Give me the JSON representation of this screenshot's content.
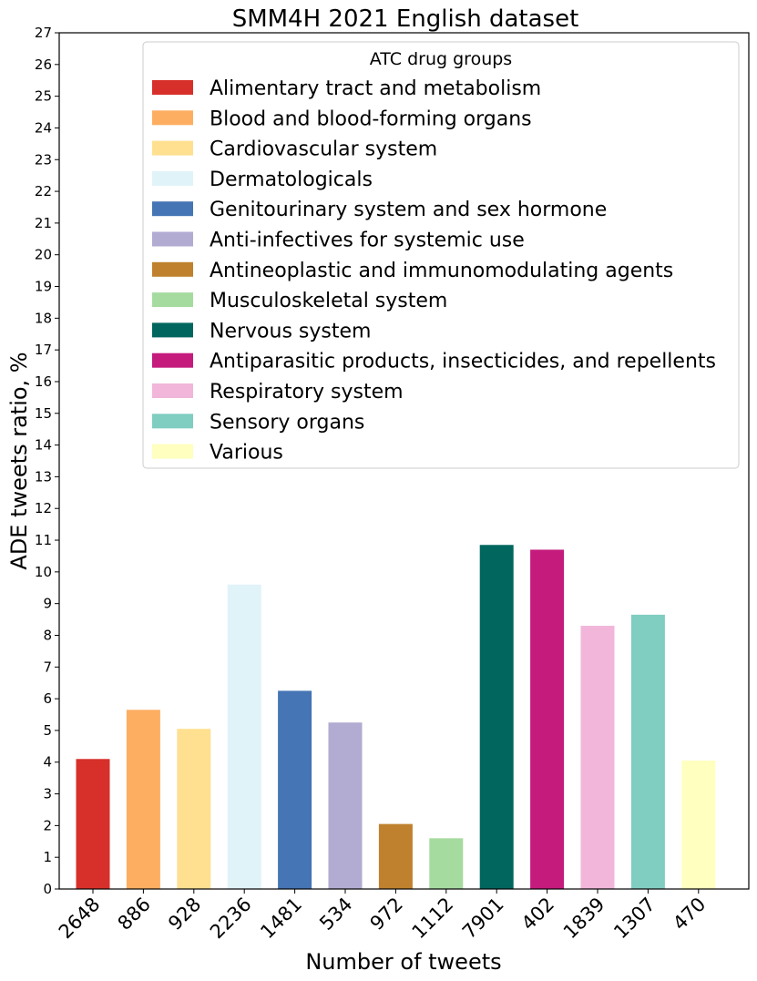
{
  "chart_data": {
    "type": "bar",
    "title": "SMM4H 2021 English dataset",
    "xlabel": "Number of tweets",
    "ylabel": "ADE tweets ratio, %",
    "ylim": [
      0,
      27
    ],
    "yticks": [
      "0",
      "1",
      "2",
      "3",
      "4",
      "5",
      "6",
      "7",
      "8",
      "9",
      "10",
      "11",
      "12",
      "13",
      "14",
      "15",
      "16",
      "17",
      "18",
      "19",
      "20",
      "21",
      "22",
      "23",
      "24",
      "25",
      "26",
      "27"
    ],
    "categories": [
      "2648",
      "886",
      "928",
      "2236",
      "1481",
      "534",
      "972",
      "1112",
      "7901",
      "402",
      "1839",
      "1307",
      "470"
    ],
    "values": [
      4.1,
      5.65,
      5.05,
      9.6,
      6.25,
      5.25,
      2.05,
      1.6,
      10.85,
      10.7,
      8.3,
      8.65,
      4.05
    ],
    "colors": [
      "#d7302a",
      "#fdae61",
      "#fee090",
      "#e0f3f8",
      "#4575b4",
      "#b2abd2",
      "#bf812d",
      "#a6dba0",
      "#01665e",
      "#c51b7d",
      "#f1b6da",
      "#80cdc1",
      "#ffffbf"
    ],
    "legend": {
      "title": "ATC drug groups",
      "position": "top-right",
      "entries": [
        "Alimentary tract and metabolism",
        "Blood and blood-forming organs",
        "Cardiovascular system",
        "Dermatologicals",
        "Genitourinary system and sex hormone",
        "Anti-infectives for systemic use",
        "Antineoplastic and immunomodulating agents",
        "Musculoskeletal system",
        "Nervous system",
        "Antiparasitic products, insecticides, and repellents",
        "Respiratory system",
        "Sensory organs",
        "Various"
      ]
    },
    "grid": false
  }
}
